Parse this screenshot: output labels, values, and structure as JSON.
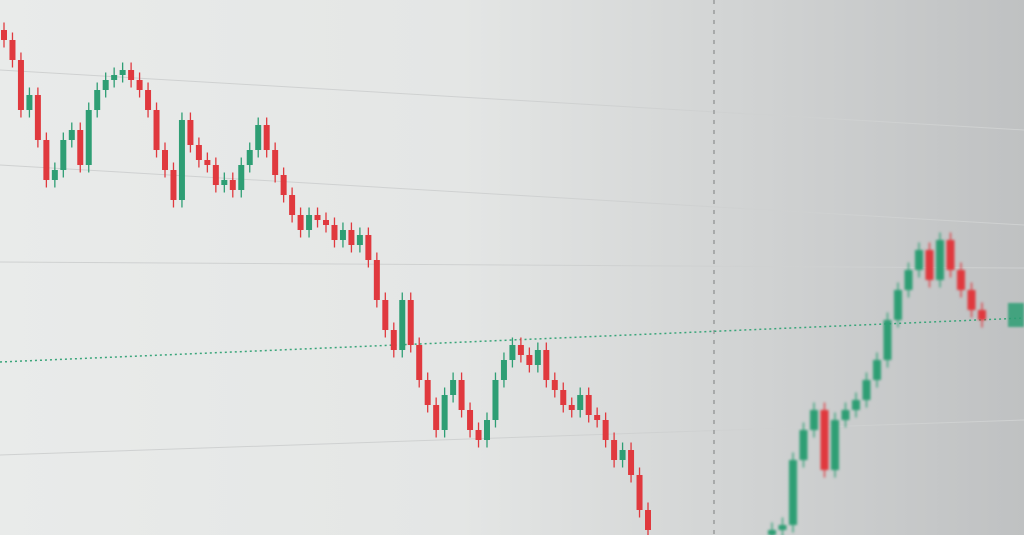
{
  "chart_data": {
    "type": "candlestick",
    "title": "",
    "xlabel": "",
    "ylabel": "",
    "grid": true,
    "up_color": "#2e9e74",
    "down_color": "#e0393e",
    "reference_line_color": "#3aa57a",
    "segments": [
      {
        "start_open": 101,
        "close": [
          99,
          95,
          85,
          88,
          79,
          71,
          73,
          79,
          81,
          74,
          85,
          89,
          91,
          92,
          93,
          91,
          89,
          85,
          77,
          73,
          67,
          83,
          78,
          75,
          74,
          70,
          71,
          69,
          74,
          77,
          82,
          77,
          72,
          68,
          64,
          61,
          64,
          63,
          62,
          59,
          61,
          58,
          60,
          55,
          47,
          41,
          37,
          47,
          38,
          31,
          26,
          21,
          28,
          31,
          25,
          21,
          19,
          23,
          31,
          35,
          38,
          36,
          34,
          37,
          31,
          29,
          26,
          25,
          28,
          24,
          23,
          19,
          15,
          17,
          12,
          5,
          1
        ]
      },
      {
        "start_open": 0,
        "close": [
          1,
          2,
          15,
          21,
          25,
          13,
          23,
          25,
          27,
          31,
          35,
          43,
          49,
          53,
          57,
          51,
          59,
          53,
          49,
          45,
          43
        ]
      }
    ]
  }
}
